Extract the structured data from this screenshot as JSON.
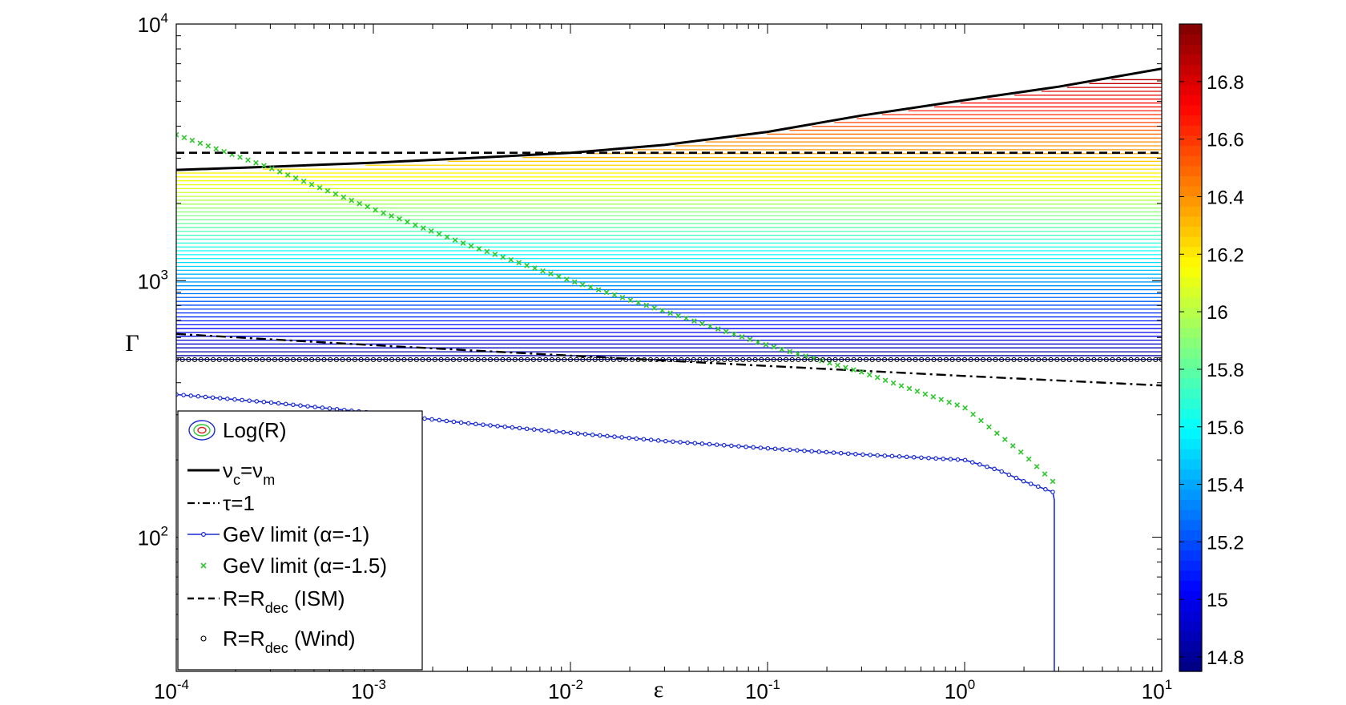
{
  "chart_data": {
    "type": "line",
    "title": "",
    "xlabel": "ε",
    "ylabel": "Γ",
    "x_scale": "log",
    "y_scale": "log",
    "xlim": [
      0.0001,
      10
    ],
    "ylim": [
      30,
      10000
    ],
    "x_ticks": [
      {
        "value": 0.0001,
        "base": "10",
        "exp": "-4"
      },
      {
        "value": 0.001,
        "base": "10",
        "exp": "-3"
      },
      {
        "value": 0.01,
        "base": "10",
        "exp": "-2"
      },
      {
        "value": 0.1,
        "base": "10",
        "exp": "-1"
      },
      {
        "value": 1,
        "base": "10",
        "exp": "0"
      },
      {
        "value": 10,
        "base": "10",
        "exp": "1"
      }
    ],
    "y_ticks": [
      {
        "value": 100,
        "base": "10",
        "exp": "2"
      },
      {
        "value": 1000,
        "base": "10",
        "exp": "3"
      },
      {
        "value": 10000,
        "base": "10",
        "exp": "4"
      }
    ],
    "grid": false,
    "legend_placement": "bottom-left",
    "colorbar": {
      "label": "",
      "range": [
        14.75,
        17.0
      ],
      "ticks": [
        "14.8",
        "15",
        "15.2",
        "15.4",
        "15.6",
        "15.8",
        "16",
        "16.2",
        "16.4",
        "16.6",
        "16.8"
      ],
      "tick_values": [
        14.8,
        15.0,
        15.2,
        15.4,
        15.6,
        15.8,
        16.0,
        16.2,
        16.4,
        16.6,
        16.8
      ],
      "colormap": "jet"
    },
    "contours": {
      "name": "Log(R)",
      "gamma_levels": [
        493,
        510,
        528,
        547,
        566,
        586,
        607,
        628,
        650,
        673,
        697,
        722,
        748,
        774,
        802,
        830,
        860,
        890,
        922,
        955,
        988,
        1023,
        1060,
        1097,
        1136,
        1177,
        1219,
        1262,
        1307,
        1353,
        1401,
        1451,
        1502,
        1556,
        1611,
        1668,
        1727,
        1789,
        1852,
        1918,
        1986,
        2057,
        2130,
        2205,
        2284,
        2365,
        2449,
        2536,
        2626,
        2719,
        2816,
        2916,
        3019,
        3126,
        3237,
        3352,
        3472,
        3595,
        3723,
        3855,
        3992,
        4134,
        4281,
        4433,
        4591,
        4754,
        4923,
        5098,
        5279,
        5467,
        5661,
        5862,
        6071
      ],
      "logR_levels": [
        14.8,
        14.83,
        14.86,
        14.89,
        14.91,
        14.94,
        14.97,
        15.0,
        15.03,
        15.06,
        15.09,
        15.12,
        15.14,
        15.17,
        15.2,
        15.23,
        15.26,
        15.29,
        15.32,
        15.35,
        15.38,
        15.41,
        15.43,
        15.46,
        15.49,
        15.52,
        15.55,
        15.58,
        15.61,
        15.64,
        15.67,
        15.7,
        15.73,
        15.75,
        15.78,
        15.81,
        15.84,
        15.87,
        15.9,
        15.93,
        15.96,
        15.99,
        16.02,
        16.05,
        16.08,
        16.1,
        16.13,
        16.16,
        16.19,
        16.22,
        16.25,
        16.28,
        16.31,
        16.34,
        16.37,
        16.39,
        16.42,
        16.45,
        16.48,
        16.51,
        16.54,
        16.57,
        16.6,
        16.63,
        16.66,
        16.69,
        16.71,
        16.74,
        16.77,
        16.8,
        16.83,
        16.86,
        16.89
      ]
    },
    "series": [
      {
        "name": "ν_c=ν_m",
        "style": "solid",
        "color": "#000000",
        "x": [
          0.0001,
          0.0003,
          0.001,
          0.003,
          0.01,
          0.03,
          0.1,
          0.3,
          1,
          3,
          10
        ],
        "y": [
          2700,
          2780,
          2880,
          3000,
          3150,
          3380,
          3800,
          4400,
          5050,
          5700,
          6700
        ]
      },
      {
        "name": "τ=1",
        "style": "dashdot",
        "color": "#000000",
        "x": [
          0.0001,
          0.001,
          0.01,
          0.1,
          1,
          10
        ],
        "y": [
          620,
          560,
          510,
          465,
          425,
          390
        ]
      },
      {
        "name": "GeV limit (α=-1)",
        "style": "solid-dot",
        "color": "#1a2bd4",
        "x": [
          0.0001,
          0.0003,
          0.001,
          0.003,
          0.01,
          0.03,
          0.1,
          0.3,
          1,
          1.5,
          2,
          2.5,
          2.8,
          2.85,
          2.85
        ],
        "y": [
          360,
          335,
          305,
          278,
          255,
          237,
          222,
          210,
          200,
          182,
          165,
          155,
          150,
          140,
          30
        ]
      },
      {
        "name": "GeV limit (α=-1.5)",
        "style": "marker-x",
        "color": "#2ec82e",
        "x": [
          0.0001,
          0.0003,
          0.001,
          0.003,
          0.01,
          0.03,
          0.1,
          0.3,
          1,
          2,
          2.8
        ],
        "y": [
          3700,
          2750,
          1900,
          1380,
          1000,
          760,
          560,
          440,
          320,
          210,
          165
        ]
      },
      {
        "name": "R=R_dec (ISM)",
        "style": "dashed",
        "color": "#000000",
        "x": [
          0.0001,
          10
        ],
        "y": [
          3150,
          3150
        ]
      },
      {
        "name": "R=R_dec (Wind)",
        "style": "marker-circle",
        "color": "#000000",
        "x": [
          0.0001,
          10
        ],
        "y": [
          492,
          492
        ]
      }
    ],
    "legend": {
      "entries": [
        {
          "base": "Log(R)",
          "parts": []
        },
        {
          "parts": [
            {
              "t": "ν",
              "sub": "c"
            },
            {
              "t": "=ν",
              "sub": "m"
            }
          ]
        },
        {
          "parts": [
            {
              "t": "τ=1",
              "sub": ""
            }
          ]
        },
        {
          "parts": [
            {
              "t": "GeV limit (α=-1)",
              "sub": ""
            }
          ]
        },
        {
          "parts": [
            {
              "t": "GeV limit (α=-1.5)",
              "sub": ""
            }
          ]
        },
        {
          "parts": [
            {
              "t": "R=R",
              "sub": "dec"
            },
            {
              "t": " (ISM)",
              "sub": ""
            }
          ]
        },
        {
          "parts": [
            {
              "t": "R=R",
              "sub": "dec"
            },
            {
              "t": " (Wind)",
              "sub": ""
            }
          ]
        }
      ]
    }
  }
}
